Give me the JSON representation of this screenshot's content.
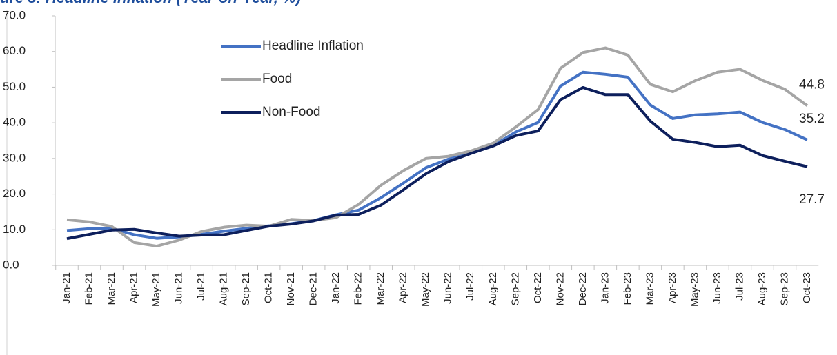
{
  "chart_data": {
    "type": "line",
    "title": "ure 3: Headline Inflation (Year-on-Year, %)",
    "categories": [
      "Jan-21",
      "Feb-21",
      "Mar-21",
      "Apr-21",
      "May-21",
      "Jun-21",
      "Jul-21",
      "Aug-21",
      "Sep-21",
      "Oct-21",
      "Nov-21",
      "Dec-21",
      "Jan-22",
      "Feb-22",
      "Mar-22",
      "Apr-22",
      "May-22",
      "Jun-22",
      "Jul-22",
      "Aug-22",
      "Sep-22",
      "Oct-22",
      "Nov-22",
      "Dec-22",
      "Jan-23",
      "Feb-23",
      "Mar-23",
      "Apr-23",
      "May-23",
      "Jun-23",
      "Jul-23",
      "Aug-23",
      "Sep-23",
      "Oct-23"
    ],
    "series": [
      {
        "name": "Headline Inflation",
        "color": "#4472c4",
        "values": [
          9.8,
          10.3,
          10.4,
          8.6,
          7.6,
          8.0,
          8.7,
          9.6,
          10.4,
          11.1,
          11.7,
          12.6,
          14.2,
          15.5,
          19.0,
          23.1,
          27.4,
          29.8,
          31.6,
          33.6,
          37.4,
          40.1,
          50.3,
          54.2,
          53.6,
          52.8,
          45.0,
          41.2,
          42.2,
          42.5,
          43.0,
          40.1,
          38.1,
          35.2
        ]
      },
      {
        "name": "Food",
        "color": "#a5a5a5",
        "values": [
          12.8,
          12.2,
          10.9,
          6.4,
          5.4,
          7.1,
          9.5,
          10.7,
          11.3,
          11.0,
          12.9,
          12.6,
          13.4,
          17.1,
          22.5,
          26.6,
          30.0,
          30.6,
          32.1,
          34.3,
          38.8,
          43.7,
          55.3,
          59.7,
          61.0,
          59.0,
          50.8,
          48.7,
          51.8,
          54.2,
          55.0,
          51.9,
          49.4,
          44.8
        ]
      },
      {
        "name": "Non-Food",
        "color": "#0d1f5c",
        "values": [
          7.5,
          8.7,
          9.9,
          10.1,
          9.1,
          8.2,
          8.5,
          8.6,
          9.8,
          11.0,
          11.6,
          12.5,
          14.1,
          14.3,
          16.9,
          21.2,
          25.7,
          29.1,
          31.4,
          33.5,
          36.4,
          37.7,
          46.5,
          49.9,
          47.9,
          47.9,
          40.5,
          35.4,
          34.5,
          33.3,
          33.7,
          30.8,
          29.2,
          27.7
        ]
      }
    ],
    "ylim": [
      0,
      70
    ],
    "yticks": [
      {
        "value": 0,
        "label": "0.0"
      },
      {
        "value": 10,
        "label": "10.0"
      },
      {
        "value": 20,
        "label": "20.0"
      },
      {
        "value": 30,
        "label": "30.0"
      },
      {
        "value": 40,
        "label": "40.0"
      },
      {
        "value": 50,
        "label": "50.0"
      },
      {
        "value": 60,
        "label": "60.0"
      },
      {
        "value": 70,
        "label": "70.0"
      }
    ],
    "end_labels": true,
    "legend": "upper left"
  }
}
